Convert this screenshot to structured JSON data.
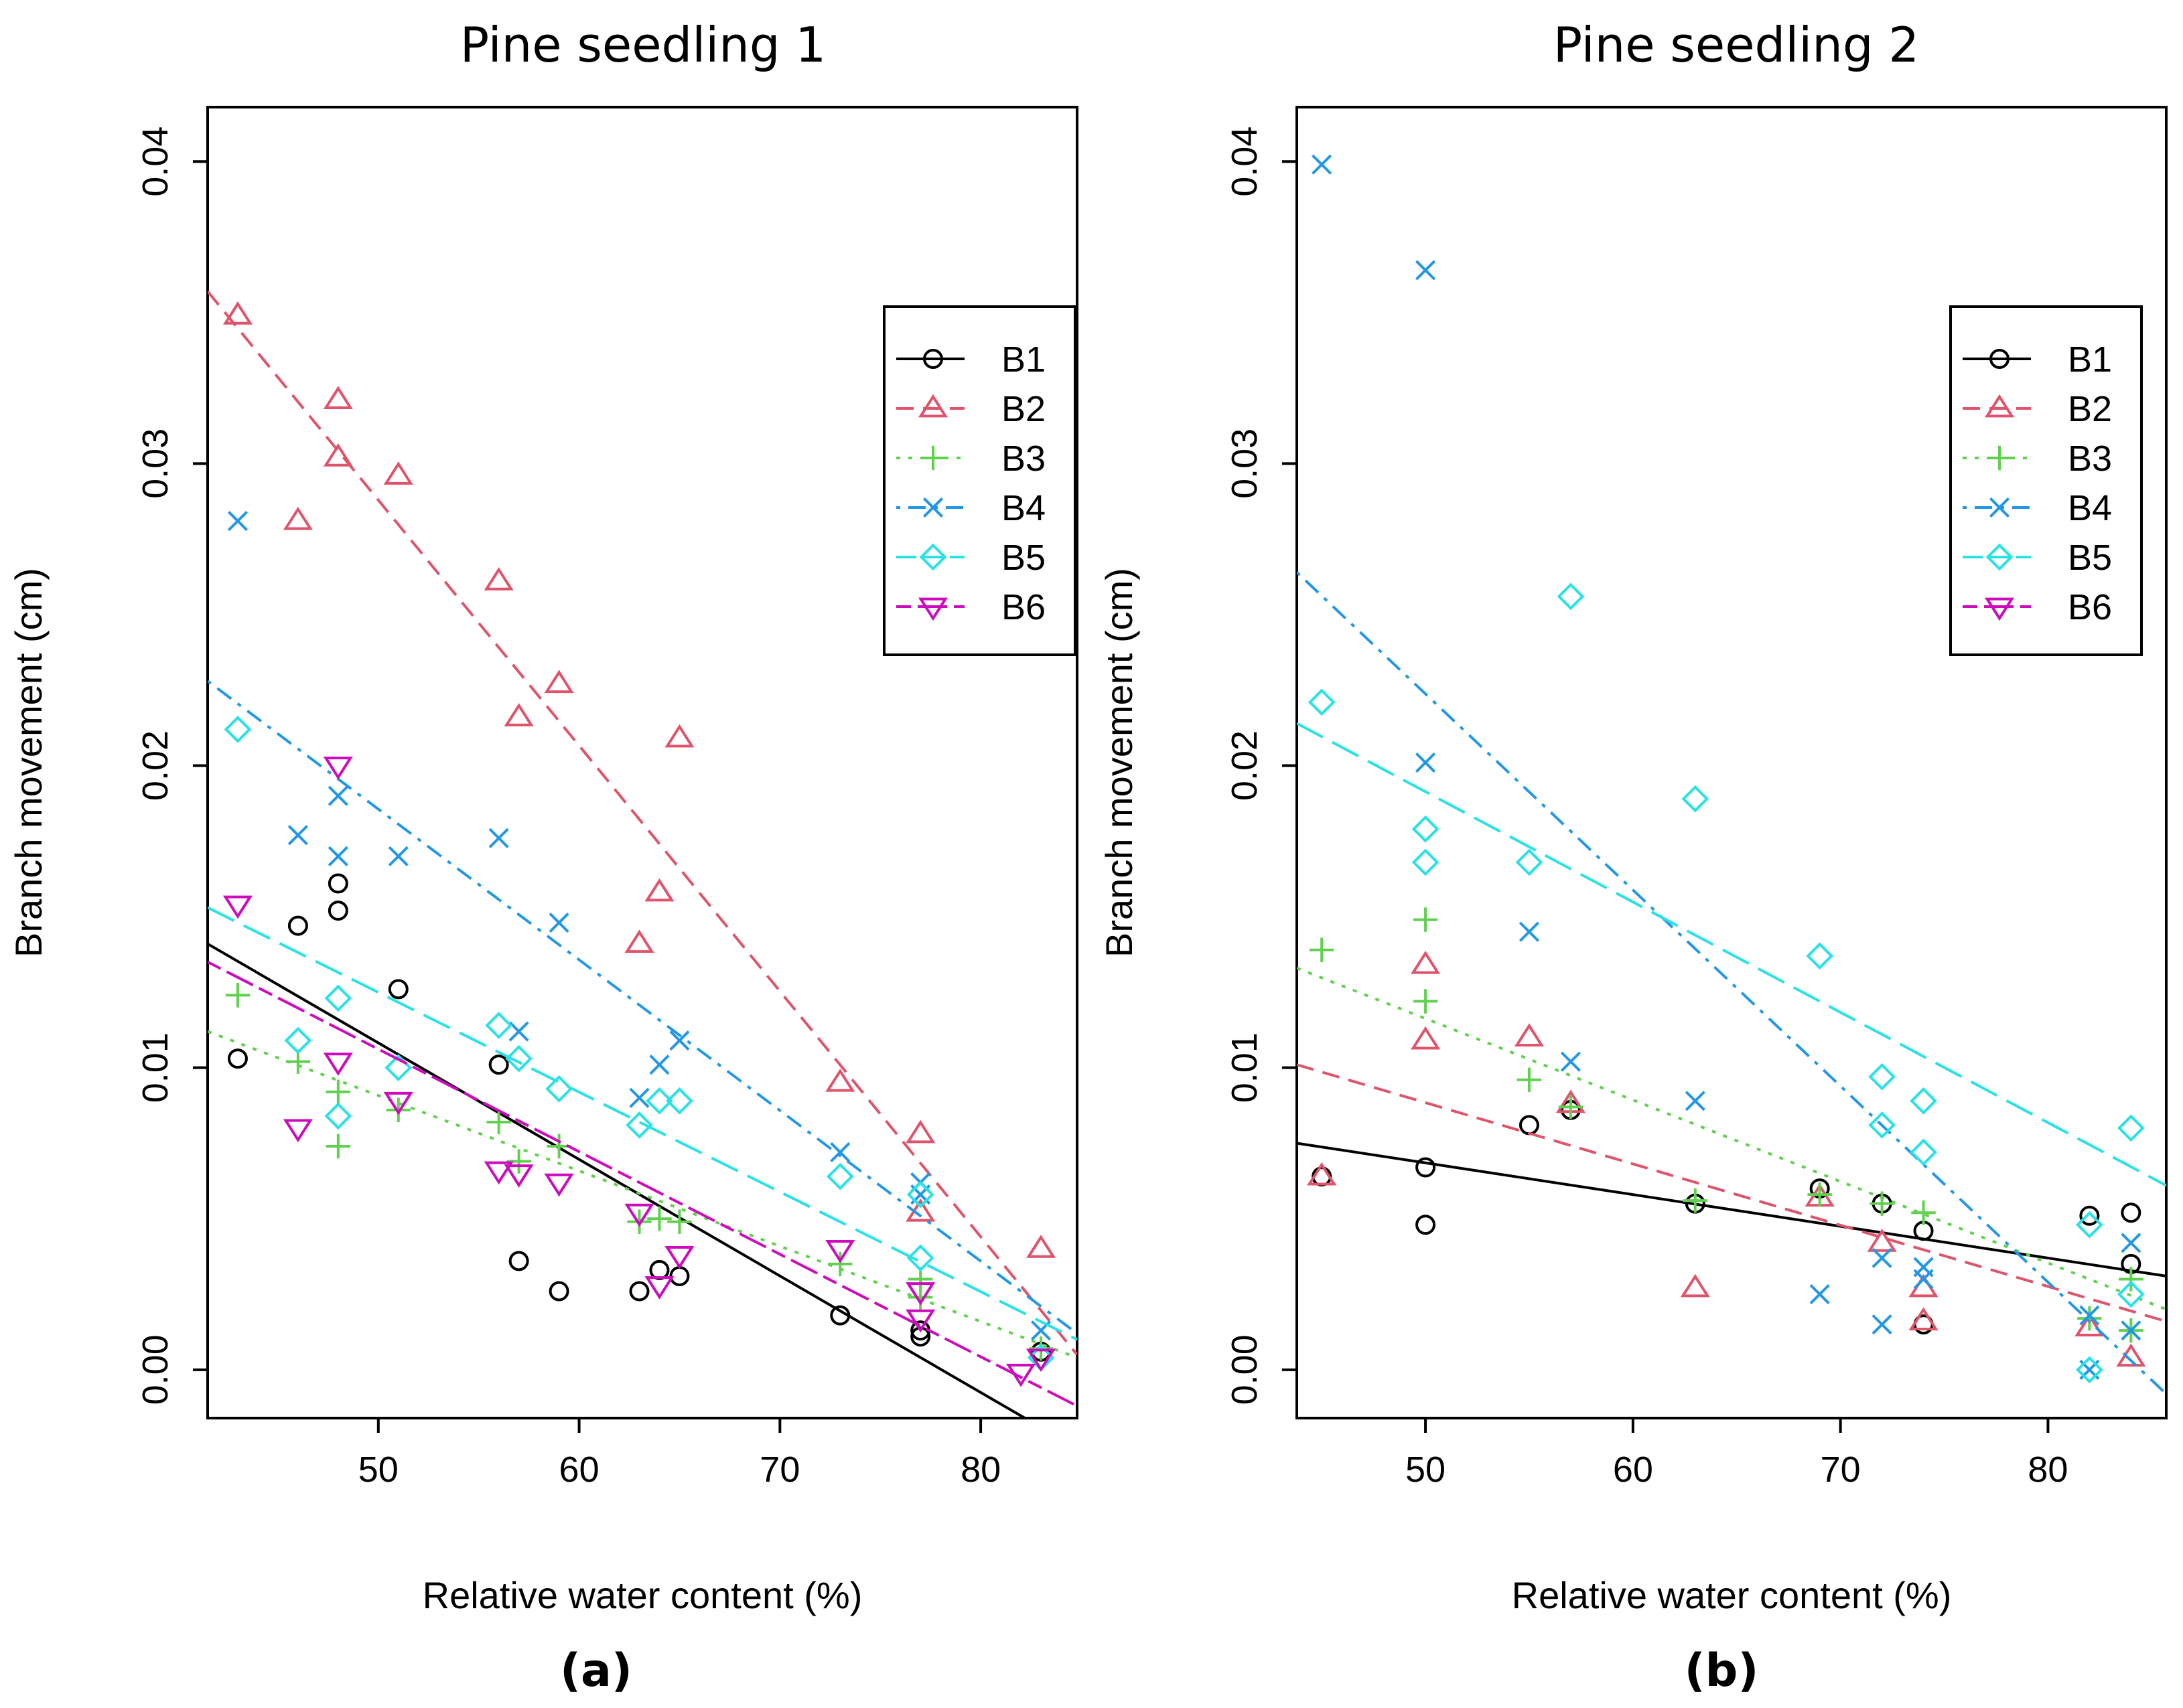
{
  "figure": {
    "subfigure_labels": [
      "(a)",
      "(b)"
    ]
  },
  "chart_data": [
    {
      "type": "scatter",
      "title": "Pine seedling 1",
      "sublabel": "(a)",
      "xlabel": "Relative water content (%)",
      "ylabel": "Branch movement (cm)",
      "xlim": [
        41.5,
        84.8
      ],
      "ylim": [
        -0.0016,
        0.0418
      ],
      "xticks": [
        50,
        60,
        70,
        80
      ],
      "yticks": [
        0.0,
        0.01,
        0.02,
        0.03,
        0.04
      ],
      "xtick_labels": [
        "50",
        "60",
        "70",
        "80"
      ],
      "ytick_labels": [
        "0.00",
        "0.01",
        "0.02",
        "0.03",
        "0.04"
      ],
      "legend": {
        "position": "top-right",
        "entries": [
          "B1",
          "B2",
          "B3",
          "B4",
          "B5",
          "B6"
        ]
      },
      "series": [
        {
          "name": "B1",
          "color": "#000000",
          "marker": "circle",
          "linestyle": "solid",
          "fit": [
            [
              41.5,
              0.0141
            ],
            [
              82.2,
              -0.0016
            ]
          ],
          "points": [
            [
              43,
              0.0103
            ],
            [
              46,
              0.0147
            ],
            [
              48,
              0.0161
            ],
            [
              48,
              0.0152
            ],
            [
              51,
              0.0126
            ],
            [
              56,
              0.0101
            ],
            [
              57,
              0.0036
            ],
            [
              59,
              0.0026
            ],
            [
              63,
              0.0026
            ],
            [
              64,
              0.0033
            ],
            [
              65,
              0.0031
            ],
            [
              73,
              0.0018
            ],
            [
              77,
              0.0011
            ],
            [
              77,
              0.0013
            ],
            [
              83,
              0.0006
            ]
          ]
        },
        {
          "name": "B2",
          "color": "#df536b",
          "marker": "triangle-up",
          "linestyle": "dashed",
          "fit": [
            [
              41.5,
              0.0357
            ],
            [
              84.8,
              0.0005
            ]
          ],
          "points": [
            [
              43,
              0.0349
            ],
            [
              46,
              0.0281
            ],
            [
              48,
              0.0321
            ],
            [
              48,
              0.0302
            ],
            [
              51,
              0.0296
            ],
            [
              56,
              0.0261
            ],
            [
              57,
              0.0216
            ],
            [
              59,
              0.0227
            ],
            [
              63,
              0.0141
            ],
            [
              64,
              0.0158
            ],
            [
              65,
              0.0209
            ],
            [
              73,
              0.0095
            ],
            [
              77,
              0.0078
            ],
            [
              77,
              0.0052
            ],
            [
              83,
              0.004
            ]
          ]
        },
        {
          "name": "B3",
          "color": "#61d04f",
          "marker": "plus",
          "linestyle": "dotted",
          "fit": [
            [
              41.5,
              0.0112
            ],
            [
              84.8,
              0.0004
            ]
          ],
          "points": [
            [
              43,
              0.0124
            ],
            [
              46,
              0.0102
            ],
            [
              48,
              0.0092
            ],
            [
              48,
              0.0074
            ],
            [
              51,
              0.0086
            ],
            [
              56,
              0.0082
            ],
            [
              57,
              0.0069
            ],
            [
              59,
              0.0074
            ],
            [
              63,
              0.0049
            ],
            [
              64,
              0.005
            ],
            [
              65,
              0.0049
            ],
            [
              73,
              0.0035
            ],
            [
              77,
              0.003
            ],
            [
              77,
              0.0024
            ],
            [
              83,
              0.0007
            ]
          ]
        },
        {
          "name": "B4",
          "color": "#2297e6",
          "marker": "cross",
          "linestyle": "dotdash",
          "fit": [
            [
              41.5,
              0.0228
            ],
            [
              84.8,
              0.0012
            ]
          ],
          "points": [
            [
              43,
              0.0281
            ],
            [
              46,
              0.0177
            ],
            [
              48,
              0.019
            ],
            [
              48,
              0.017
            ],
            [
              51,
              0.017
            ],
            [
              56,
              0.0176
            ],
            [
              57,
              0.0112
            ],
            [
              59,
              0.0148
            ],
            [
              63,
              0.009
            ],
            [
              64,
              0.0101
            ],
            [
              65,
              0.0109
            ],
            [
              73,
              0.0072
            ],
            [
              77,
              0.0062
            ],
            [
              77,
              0.0058
            ],
            [
              83,
              0.0013
            ]
          ]
        },
        {
          "name": "B5",
          "color": "#28e2e5",
          "marker": "diamond",
          "linestyle": "longdash",
          "fit": [
            [
              41.5,
              0.0153
            ],
            [
              84.8,
              0.001
            ]
          ],
          "points": [
            [
              43,
              0.0212
            ],
            [
              46,
              0.0109
            ],
            [
              48,
              0.0123
            ],
            [
              48,
              0.0084
            ],
            [
              51,
              0.01
            ],
            [
              56,
              0.0114
            ],
            [
              57,
              0.0103
            ],
            [
              59,
              0.0093
            ],
            [
              63,
              0.0081
            ],
            [
              64,
              0.0089
            ],
            [
              65,
              0.0089
            ],
            [
              73,
              0.0064
            ],
            [
              77,
              0.0058
            ],
            [
              77,
              0.0037
            ],
            [
              83,
              0.0004
            ]
          ]
        },
        {
          "name": "B6",
          "color": "#cd0bbc",
          "marker": "triangle-down",
          "linestyle": "twodash",
          "fit": [
            [
              41.5,
              0.0135
            ],
            [
              84.8,
              -0.0012
            ]
          ],
          "points": [
            [
              43,
              0.0154
            ],
            [
              46,
              0.008
            ],
            [
              48,
              0.02
            ],
            [
              48,
              0.0102
            ],
            [
              51,
              0.0089
            ],
            [
              56,
              0.0066
            ],
            [
              57,
              0.0065
            ],
            [
              59,
              0.0062
            ],
            [
              63,
              0.0052
            ],
            [
              64,
              0.0028
            ],
            [
              65,
              0.0038
            ],
            [
              73,
              0.004
            ],
            [
              77,
              0.0026
            ],
            [
              77,
              0.0017
            ],
            [
              82,
              -0.0001
            ],
            [
              83,
              0.0004
            ]
          ]
        }
      ]
    },
    {
      "type": "scatter",
      "title": "Pine seedling 2",
      "sublabel": "(b)",
      "xlabel": "Relative water content (%)",
      "ylabel": "Branch movement (cm)",
      "xlim": [
        43.8,
        85.7
      ],
      "ylim": [
        -0.0016,
        0.0418
      ],
      "xticks": [
        50,
        60,
        70,
        80
      ],
      "yticks": [
        0.0,
        0.01,
        0.02,
        0.03,
        0.04
      ],
      "xtick_labels": [
        "50",
        "60",
        "70",
        "80"
      ],
      "ytick_labels": [
        "0.00",
        "0.01",
        "0.02",
        "0.03",
        "0.04"
      ],
      "legend": {
        "position": "top-right",
        "entries": [
          "B1",
          "B2",
          "B3",
          "B4",
          "B5",
          "B6"
        ]
      },
      "series": [
        {
          "name": "B1",
          "color": "#000000",
          "marker": "circle",
          "linestyle": "solid",
          "fit": [
            [
              43.8,
              0.0075
            ],
            [
              85.7,
              0.0031
            ]
          ],
          "points": [
            [
              45,
              0.0064
            ],
            [
              50,
              0.0067
            ],
            [
              50,
              0.0048
            ],
            [
              55,
              0.0081
            ],
            [
              57,
              0.0086
            ],
            [
              63,
              0.0055
            ],
            [
              69,
              0.006
            ],
            [
              72,
              0.0055
            ],
            [
              74,
              0.0046
            ],
            [
              74,
              0.0015
            ],
            [
              82,
              0.0051
            ],
            [
              84,
              0.0052
            ],
            [
              84,
              0.0035
            ]
          ]
        },
        {
          "name": "B2",
          "color": "#df536b",
          "marker": "triangle-up",
          "linestyle": "dashed",
          "fit": [
            [
              43.8,
              0.0101
            ],
            [
              85.7,
              0.0016
            ]
          ],
          "points": [
            [
              45,
              0.0064
            ],
            [
              50,
              0.0134
            ],
            [
              50,
              0.0109
            ],
            [
              55,
              0.011
            ],
            [
              57,
              0.0088
            ],
            [
              63,
              0.0027
            ],
            [
              69,
              0.0057
            ],
            [
              72,
              0.0042
            ],
            [
              74,
              0.0027
            ],
            [
              74,
              0.0016
            ],
            [
              82,
              0.0014
            ],
            [
              84,
              0.0004
            ]
          ]
        },
        {
          "name": "B3",
          "color": "#61d04f",
          "marker": "plus",
          "linestyle": "dotted",
          "fit": [
            [
              43.8,
              0.0133
            ],
            [
              85.7,
              0.002
            ]
          ],
          "points": [
            [
              45,
              0.0139
            ],
            [
              50,
              0.0149
            ],
            [
              50,
              0.0122
            ],
            [
              55,
              0.0096
            ],
            [
              57,
              0.0087
            ],
            [
              63,
              0.0056
            ],
            [
              69,
              0.0058
            ],
            [
              72,
              0.0055
            ],
            [
              74,
              0.0052
            ],
            [
              82,
              0.0017
            ],
            [
              84,
              0.003
            ],
            [
              84,
              0.0013
            ]
          ]
        },
        {
          "name": "B4",
          "color": "#2297e6",
          "marker": "cross",
          "linestyle": "dotdash",
          "fit": [
            [
              43.8,
              0.0264
            ],
            [
              85.7,
              -0.0008
            ]
          ],
          "points": [
            [
              45,
              0.0399
            ],
            [
              50,
              0.0364
            ],
            [
              50,
              0.0201
            ],
            [
              55,
              0.0145
            ],
            [
              57,
              0.0102
            ],
            [
              63,
              0.0089
            ],
            [
              69,
              0.0025
            ],
            [
              72,
              0.0037
            ],
            [
              72,
              0.0015
            ],
            [
              74,
              0.0034
            ],
            [
              74,
              0.003
            ],
            [
              82,
              0.0018
            ],
            [
              82,
              0.0
            ],
            [
              84,
              0.0042
            ],
            [
              84,
              0.0013
            ]
          ]
        },
        {
          "name": "B5",
          "color": "#28e2e5",
          "marker": "diamond",
          "linestyle": "longdash",
          "fit": [
            [
              43.8,
              0.0214
            ],
            [
              85.7,
              0.0061
            ]
          ],
          "points": [
            [
              45,
              0.0221
            ],
            [
              50,
              0.0179
            ],
            [
              50,
              0.0168
            ],
            [
              55,
              0.0168
            ],
            [
              57,
              0.0256
            ],
            [
              63,
              0.0189
            ],
            [
              69,
              0.0137
            ],
            [
              72,
              0.0097
            ],
            [
              72,
              0.0081
            ],
            [
              74,
              0.0089
            ],
            [
              74,
              0.0072
            ],
            [
              82,
              0.0048
            ],
            [
              82,
              0.0
            ],
            [
              84,
              0.008
            ],
            [
              84,
              0.0025
            ]
          ]
        },
        {
          "name": "B6",
          "color": "#cd0bbc",
          "marker": "triangle-down",
          "linestyle": "twodash",
          "fit": null,
          "points": []
        }
      ]
    }
  ]
}
